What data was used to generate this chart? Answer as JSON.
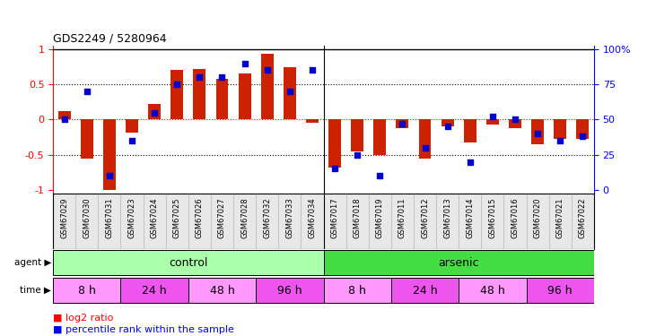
{
  "title": "GDS2249 / 5280964",
  "samples": [
    "GSM67029",
    "GSM67030",
    "GSM67031",
    "GSM67023",
    "GSM67024",
    "GSM67025",
    "GSM67026",
    "GSM67027",
    "GSM67028",
    "GSM67032",
    "GSM67033",
    "GSM67034",
    "GSM67017",
    "GSM67018",
    "GSM67019",
    "GSM67011",
    "GSM67012",
    "GSM67013",
    "GSM67014",
    "GSM67015",
    "GSM67016",
    "GSM67020",
    "GSM67021",
    "GSM67022"
  ],
  "log2_ratio": [
    0.12,
    -0.55,
    -1.0,
    -0.18,
    0.22,
    0.7,
    0.72,
    0.58,
    0.65,
    0.93,
    0.75,
    -0.05,
    -0.68,
    -0.45,
    -0.5,
    -0.12,
    -0.56,
    -0.1,
    -0.32,
    -0.07,
    -0.12,
    -0.35,
    -0.27,
    -0.28
  ],
  "percentile": [
    50,
    70,
    10,
    35,
    55,
    75,
    80,
    80,
    90,
    85,
    70,
    85,
    15,
    25,
    10,
    47,
    30,
    45,
    20,
    52,
    50,
    40,
    35,
    38
  ],
  "agent_groups": [
    {
      "label": "control",
      "start": 0,
      "end": 12,
      "color": "#AAFFAA"
    },
    {
      "label": "arsenic",
      "start": 12,
      "end": 24,
      "color": "#44DD44"
    }
  ],
  "time_groups": [
    {
      "label": "8 h",
      "start": 0,
      "end": 3,
      "color": "#FF99FF"
    },
    {
      "label": "24 h",
      "start": 3,
      "end": 6,
      "color": "#EE55EE"
    },
    {
      "label": "48 h",
      "start": 6,
      "end": 9,
      "color": "#FF99FF"
    },
    {
      "label": "96 h",
      "start": 9,
      "end": 12,
      "color": "#EE55EE"
    },
    {
      "label": "8 h",
      "start": 12,
      "end": 15,
      "color": "#FF99FF"
    },
    {
      "label": "24 h",
      "start": 15,
      "end": 18,
      "color": "#EE55EE"
    },
    {
      "label": "48 h",
      "start": 18,
      "end": 21,
      "color": "#FF99FF"
    },
    {
      "label": "96 h",
      "start": 21,
      "end": 24,
      "color": "#EE55EE"
    }
  ],
  "bar_color": "#CC2200",
  "dot_color": "#0000CC",
  "ylim": [
    -1.05,
    1.05
  ],
  "yticks_left": [
    -1,
    -0.5,
    0,
    0.5,
    1
  ],
  "yticks_left_labels": [
    "-1",
    "-0.5",
    "0",
    "0.5",
    "1"
  ],
  "yticks_right": [
    0,
    25,
    50,
    75,
    100
  ],
  "yticks_right_labels": [
    "0",
    "25",
    "50",
    "75",
    "100%"
  ],
  "bar_width": 0.55
}
